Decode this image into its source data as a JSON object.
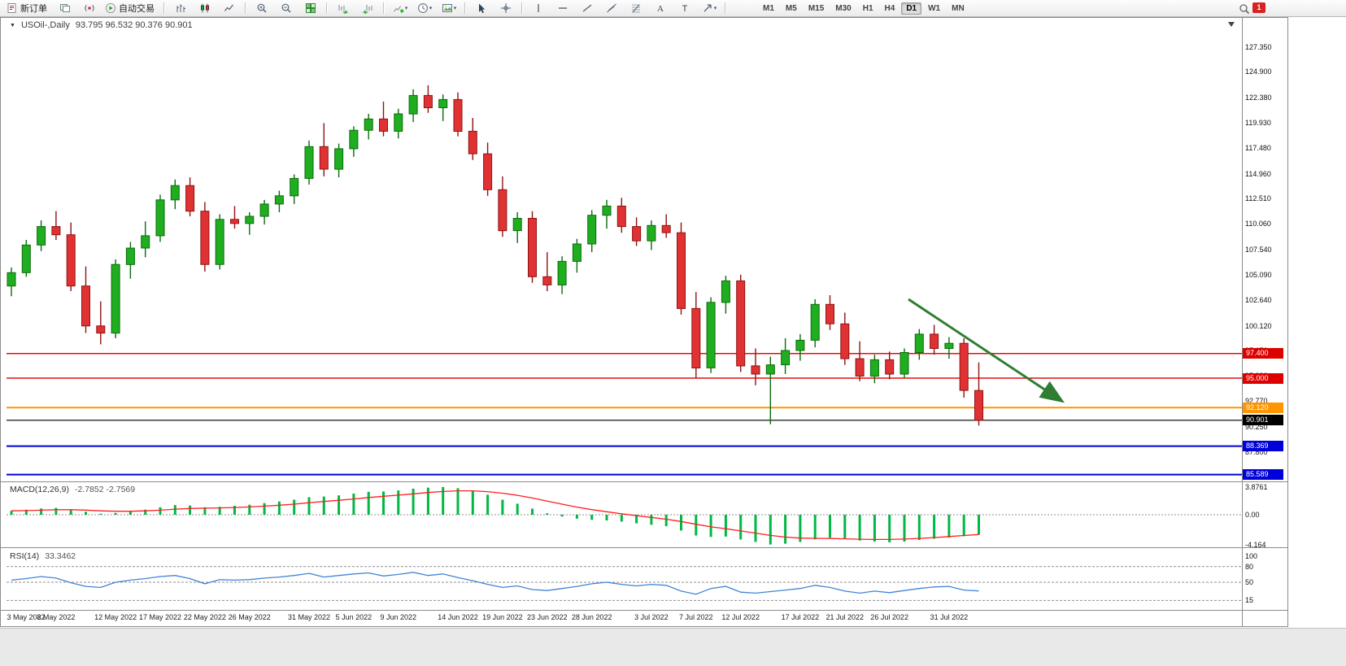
{
  "toolbar": {
    "buttons": [
      {
        "name": "new-order",
        "label": "新订单"
      },
      {
        "name": "profiles"
      },
      {
        "name": "news"
      },
      {
        "name": "auto-trading",
        "label": "自动交易"
      },
      {
        "sep": true
      },
      {
        "name": "bar-chart"
      },
      {
        "name": "candle-chart"
      },
      {
        "name": "line-chart"
      },
      {
        "sep": true
      },
      {
        "name": "zoom-in"
      },
      {
        "name": "zoom-out"
      },
      {
        "name": "tile-windows"
      },
      {
        "sep": true
      },
      {
        "name": "auto-scroll"
      },
      {
        "name": "chart-shift"
      },
      {
        "sep": true
      },
      {
        "name": "indicators",
        "caret": true
      },
      {
        "name": "periods",
        "caret": true
      },
      {
        "name": "templates",
        "caret": true
      },
      {
        "sep": true
      },
      {
        "name": "cursor"
      },
      {
        "name": "crosshair"
      },
      {
        "sep": true
      },
      {
        "name": "vertical-line"
      },
      {
        "name": "horizontal-line"
      },
      {
        "name": "trendline"
      },
      {
        "name": "channel"
      },
      {
        "name": "fibonacci"
      },
      {
        "name": "text"
      },
      {
        "name": "text-label"
      },
      {
        "name": "arrows",
        "caret": true
      },
      {
        "sep": true
      }
    ],
    "timeframes": [
      "M1",
      "M5",
      "M15",
      "M30",
      "H1",
      "H4",
      "D1",
      "W1",
      "MN"
    ],
    "active_timeframe": "D1",
    "notification_count": "1"
  },
  "chart": {
    "title": "USOil-,Daily",
    "ohlc": "93.795 96.532 90.376 90.901"
  },
  "chart_data": {
    "type": "candlestick",
    "symbol": "USOil-",
    "timeframe": "Daily",
    "ohlc_display": {
      "open": "93.795",
      "high": "96.532",
      "low": "90.376",
      "close": "90.901"
    },
    "colors": {
      "bull": "#1fae1f",
      "bull_stroke": "#0c6b0c",
      "bear": "#e03232",
      "bear_stroke": "#8f1212",
      "macd_hist": "#00b844",
      "macd_signal": "#ff1e1e",
      "rsi_line": "#4184d6"
    },
    "price_axis": {
      "min": 85.0,
      "max": 128.9,
      "labels": [
        {
          "value": 127.35,
          "text": "127.350"
        },
        {
          "value": 124.9,
          "text": "124.900"
        },
        {
          "value": 122.38,
          "text": "122.380"
        },
        {
          "value": 119.93,
          "text": "119.930"
        },
        {
          "value": 117.48,
          "text": "117.480"
        },
        {
          "value": 114.96,
          "text": "114.960"
        },
        {
          "value": 112.51,
          "text": "112.510"
        },
        {
          "value": 110.06,
          "text": "110.060"
        },
        {
          "value": 107.54,
          "text": "107.540"
        },
        {
          "value": 105.09,
          "text": "105.090"
        },
        {
          "value": 102.64,
          "text": "102.640"
        },
        {
          "value": 100.12,
          "text": "100.120"
        },
        {
          "value": 97.67,
          "text": "97.670"
        },
        {
          "value": 95.22,
          "text": "95.220"
        },
        {
          "value": 92.77,
          "text": "92.770"
        },
        {
          "value": 90.25,
          "text": "90.250"
        },
        {
          "value": 87.8,
          "text": "87.800"
        },
        {
          "value": 85.35,
          "text": "85.350"
        }
      ]
    },
    "hlines": [
      {
        "price": 97.4,
        "label": "97.400",
        "color": "#e01010",
        "tag_bg": "#dd0000",
        "width": 1.5
      },
      {
        "price": 95.0,
        "label": "95.000",
        "color": "#e01010",
        "tag_bg": "#dd0000",
        "width": 1.5
      },
      {
        "price": 92.12,
        "label": "92.120",
        "color": "#ff9500",
        "tag_bg": "#ff9500",
        "width": 2
      },
      {
        "price": 90.901,
        "label": "90.901",
        "color": "#3a3a3a",
        "tag_bg": "#000000",
        "width": 1.5
      },
      {
        "price": 88.369,
        "label": "88.369",
        "color": "#0000d8",
        "tag_bg": "#0000d8",
        "width": 2
      },
      {
        "price": 85.589,
        "label": "85.589",
        "color": "#0000d8",
        "tag_bg": "#0000d8",
        "width": 2
      }
    ],
    "arrow": {
      "t1": 60.3,
      "p1": 102.7,
      "t2": 70.5,
      "p2": 92.86,
      "color": "#2e7d32"
    },
    "candles": [
      [
        104.0,
        105.8,
        103.0,
        105.3
      ],
      [
        105.3,
        108.5,
        104.9,
        108.0
      ],
      [
        108.0,
        110.4,
        107.4,
        109.8
      ],
      [
        109.8,
        111.3,
        108.5,
        109.0
      ],
      [
        109.0,
        110.2,
        103.5,
        104.0
      ],
      [
        104.0,
        105.9,
        99.4,
        100.1
      ],
      [
        100.1,
        102.5,
        98.3,
        99.4
      ],
      [
        99.4,
        106.6,
        98.9,
        106.1
      ],
      [
        106.1,
        108.3,
        104.7,
        107.7
      ],
      [
        107.7,
        110.3,
        106.8,
        108.9
      ],
      [
        108.9,
        112.9,
        108.3,
        112.4
      ],
      [
        112.4,
        114.4,
        111.5,
        113.8
      ],
      [
        113.8,
        114.6,
        110.8,
        111.3
      ],
      [
        111.3,
        112.2,
        105.4,
        106.1
      ],
      [
        106.1,
        111.0,
        105.6,
        110.5
      ],
      [
        110.5,
        111.8,
        109.6,
        110.1
      ],
      [
        110.1,
        111.2,
        109.0,
        110.8
      ],
      [
        110.8,
        112.4,
        110.0,
        112.0
      ],
      [
        112.0,
        113.3,
        111.2,
        112.8
      ],
      [
        112.8,
        114.9,
        112.0,
        114.5
      ],
      [
        114.5,
        118.2,
        113.9,
        117.6
      ],
      [
        117.6,
        119.9,
        114.7,
        115.4
      ],
      [
        115.4,
        117.9,
        114.6,
        117.4
      ],
      [
        117.4,
        119.6,
        116.6,
        119.2
      ],
      [
        119.2,
        120.8,
        118.3,
        120.3
      ],
      [
        120.3,
        122.0,
        118.6,
        119.1
      ],
      [
        119.1,
        121.3,
        118.4,
        120.8
      ],
      [
        120.8,
        123.2,
        120.0,
        122.6
      ],
      [
        122.6,
        123.6,
        120.9,
        121.4
      ],
      [
        121.4,
        122.7,
        120.1,
        122.2
      ],
      [
        122.2,
        122.9,
        118.6,
        119.1
      ],
      [
        119.1,
        120.4,
        116.3,
        116.9
      ],
      [
        116.9,
        118.0,
        112.8,
        113.4
      ],
      [
        113.4,
        114.7,
        108.8,
        109.4
      ],
      [
        109.4,
        111.2,
        108.2,
        110.6
      ],
      [
        110.6,
        111.3,
        104.3,
        104.9
      ],
      [
        104.9,
        107.3,
        103.5,
        104.1
      ],
      [
        104.1,
        106.9,
        103.2,
        106.4
      ],
      [
        106.4,
        108.6,
        105.3,
        108.1
      ],
      [
        108.1,
        111.4,
        107.3,
        110.9
      ],
      [
        110.9,
        112.4,
        109.6,
        111.8
      ],
      [
        111.8,
        112.6,
        109.2,
        109.8
      ],
      [
        109.8,
        110.7,
        107.9,
        108.4
      ],
      [
        108.4,
        110.4,
        107.5,
        109.9
      ],
      [
        109.9,
        111.0,
        108.7,
        109.2
      ],
      [
        109.2,
        110.2,
        101.2,
        101.8
      ],
      [
        101.8,
        103.4,
        95.0,
        96.0
      ],
      [
        96.0,
        102.9,
        95.5,
        102.4
      ],
      [
        102.4,
        105.0,
        101.3,
        104.5
      ],
      [
        104.5,
        105.1,
        95.6,
        96.2
      ],
      [
        96.2,
        97.9,
        94.3,
        95.4
      ],
      [
        95.4,
        97.1,
        90.5,
        96.3
      ],
      [
        96.3,
        98.9,
        95.4,
        97.7
      ],
      [
        97.7,
        99.3,
        96.7,
        98.7
      ],
      [
        98.7,
        102.7,
        98.0,
        102.2
      ],
      [
        102.2,
        103.1,
        99.7,
        100.3
      ],
      [
        100.3,
        101.4,
        96.3,
        96.9
      ],
      [
        96.9,
        98.6,
        94.7,
        95.2
      ],
      [
        95.2,
        97.3,
        94.5,
        96.8
      ],
      [
        96.8,
        97.6,
        94.9,
        95.4
      ],
      [
        95.4,
        97.9,
        95.0,
        97.5
      ],
      [
        97.5,
        99.8,
        96.8,
        99.3
      ],
      [
        99.3,
        100.2,
        97.3,
        97.9
      ],
      [
        97.9,
        99.0,
        96.9,
        98.4
      ],
      [
        98.4,
        98.9,
        93.1,
        93.8
      ],
      [
        93.795,
        96.532,
        90.376,
        90.901
      ]
    ],
    "date_axis": {
      "indices": [
        0,
        3,
        7,
        10,
        13,
        16,
        20,
        23,
        26,
        30,
        33,
        36,
        39,
        43,
        46,
        49,
        53,
        56,
        59,
        63
      ],
      "texts": [
        "3 May 2022",
        "8 May 2022",
        "12 May 2022",
        "17 May 2022",
        "22 May 2022",
        "26 May 2022",
        "31 May 2022",
        "5 Jun 2022",
        "9 Jun 2022",
        "14 Jun 2022",
        "19 Jun 2022",
        "23 Jun 2022",
        "28 Jun 2022",
        "3 Jul 2022",
        "7 Jul 2022",
        "12 Jul 2022",
        "17 Jul 2022",
        "21 Jul 2022",
        "26 Jul 2022",
        "31 Jul 2022"
      ]
    },
    "macd": {
      "label": "MACD(12,26,9)",
      "values_text": "-2.7852 -2.7569",
      "axis": [
        {
          "v": 3.8761,
          "text": "3.8761"
        },
        {
          "v": 0,
          "text": "0.00"
        },
        {
          "v": -4.164,
          "text": "-4.164"
        }
      ],
      "hist": [
        0.55,
        0.7,
        0.88,
        0.95,
        0.75,
        0.42,
        0.15,
        0.25,
        0.48,
        0.72,
        1.05,
        1.35,
        1.3,
        1.05,
        1.1,
        1.25,
        1.4,
        1.62,
        1.85,
        2.1,
        2.45,
        2.55,
        2.7,
        2.95,
        3.2,
        3.25,
        3.4,
        3.65,
        3.8,
        3.87,
        3.7,
        3.35,
        2.8,
        2.1,
        1.55,
        0.85,
        0.2,
        -0.25,
        -0.55,
        -0.7,
        -0.8,
        -0.95,
        -1.2,
        -1.4,
        -1.6,
        -2.2,
        -2.9,
        -3.1,
        -3.05,
        -3.45,
        -3.8,
        -4.16,
        -4.05,
        -3.8,
        -3.45,
        -3.2,
        -3.3,
        -3.6,
        -3.75,
        -3.85,
        -3.75,
        -3.55,
        -3.35,
        -3.2,
        -3.0,
        -2.79
      ],
      "signal": [
        0.55,
        0.58,
        0.64,
        0.7,
        0.71,
        0.65,
        0.55,
        0.49,
        0.49,
        0.54,
        0.64,
        0.78,
        0.88,
        0.92,
        0.95,
        1.01,
        1.09,
        1.2,
        1.33,
        1.48,
        1.68,
        1.85,
        2.02,
        2.21,
        2.41,
        2.58,
        2.74,
        2.92,
        3.1,
        3.25,
        3.34,
        3.34,
        3.23,
        3.01,
        2.72,
        2.34,
        1.91,
        1.48,
        1.07,
        0.72,
        0.42,
        0.14,
        -0.13,
        -0.38,
        -0.63,
        -0.94,
        -1.33,
        -1.69,
        -1.96,
        -2.26,
        -2.57,
        -2.89,
        -3.12,
        -3.26,
        -3.3,
        -3.32,
        -3.36,
        -3.42,
        -3.46,
        -3.45,
        -3.4,
        -3.31,
        -3.19,
        -3.05,
        -2.9,
        -2.76
      ]
    },
    "rsi": {
      "label": "RSI(14)",
      "value_text": "33.3462",
      "axis": [
        {
          "v": 100,
          "text": "100"
        },
        {
          "v": 80,
          "text": "80"
        },
        {
          "v": 50,
          "text": "50"
        },
        {
          "v": 15,
          "text": "15"
        }
      ],
      "levels": [
        80,
        50,
        15
      ],
      "values": [
        54,
        57,
        61,
        58,
        49,
        42,
        40,
        50,
        54,
        57,
        61,
        63,
        57,
        47,
        55,
        54,
        55,
        58,
        60,
        63,
        67,
        60,
        63,
        66,
        68,
        62,
        65,
        69,
        63,
        66,
        59,
        53,
        46,
        40,
        43,
        36,
        34,
        38,
        42,
        47,
        50,
        46,
        43,
        46,
        44,
        33,
        27,
        38,
        42,
        31,
        29,
        32,
        35,
        38,
        44,
        40,
        33,
        29,
        33,
        30,
        34,
        38,
        41,
        42,
        35,
        33.35
      ]
    }
  }
}
